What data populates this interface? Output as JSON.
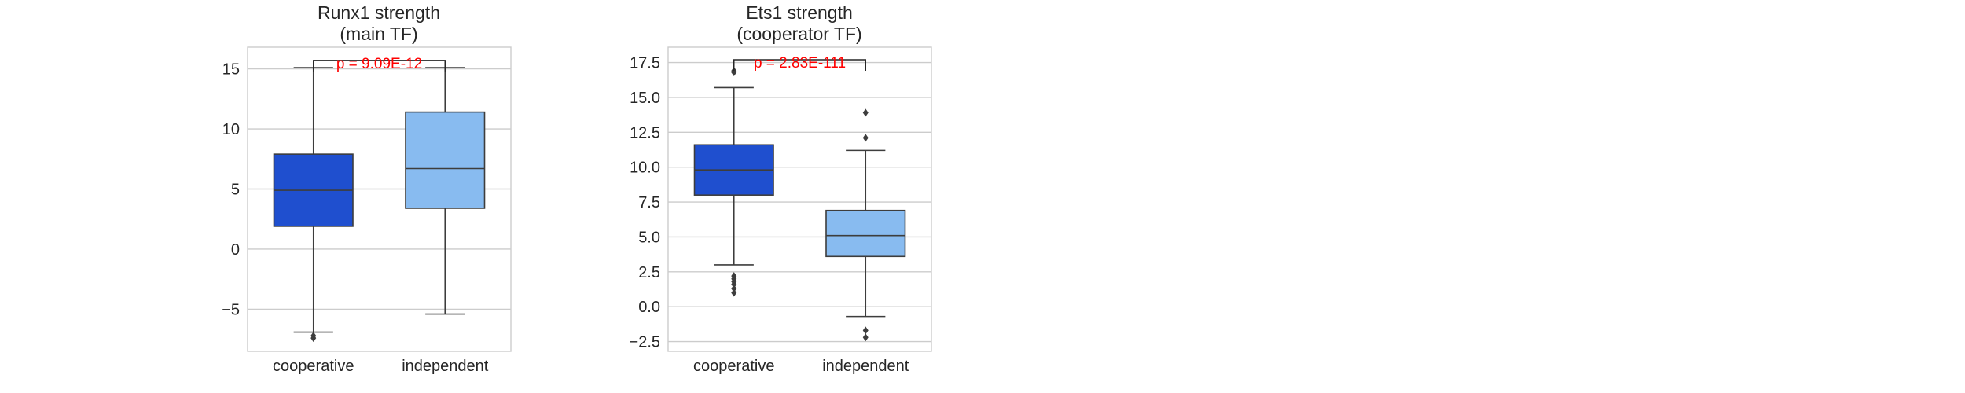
{
  "chart_data": [
    {
      "type": "box",
      "title_lines": [
        "Runx1 strength",
        "(main TF)"
      ],
      "xlabel": "",
      "ylabel": "",
      "ylim": [
        -8.5,
        16.8
      ],
      "yticks": [
        15,
        10,
        5,
        0,
        -5
      ],
      "ytick_labels": [
        "15",
        "10",
        "5",
        "0",
        "−5"
      ],
      "grid": true,
      "categories": [
        "cooperative",
        "independent"
      ],
      "boxes": [
        {
          "category": "cooperative",
          "color": "#1f4fcf",
          "whisker_low": -6.9,
          "q1": 1.9,
          "median": 4.9,
          "q3": 7.9,
          "whisker_high": 15.1,
          "fliers": [
            -7.2,
            -7.4
          ]
        },
        {
          "category": "independent",
          "color": "#88bbf0",
          "whisker_low": -5.4,
          "q1": 3.4,
          "median": 6.7,
          "q3": 11.4,
          "whisker_high": 15.1,
          "fliers": []
        }
      ],
      "annotation": {
        "text": "p = 9.09E-12",
        "color": "#ff0000",
        "bracket_y": 15.7
      }
    },
    {
      "type": "box",
      "title_lines": [
        "Ets1 strength",
        "(cooperator TF)"
      ],
      "xlabel": "",
      "ylabel": "",
      "ylim": [
        -3.2,
        18.6
      ],
      "yticks": [
        17.5,
        15.0,
        12.5,
        10.0,
        7.5,
        5.0,
        2.5,
        0.0,
        -2.5
      ],
      "ytick_labels": [
        "17.5",
        "15.0",
        "12.5",
        "10.0",
        "7.5",
        "5.0",
        "2.5",
        "0.0",
        "−2.5"
      ],
      "grid": true,
      "categories": [
        "cooperative",
        "independent"
      ],
      "boxes": [
        {
          "category": "cooperative",
          "color": "#1f4fcf",
          "whisker_low": 3.0,
          "q1": 8.0,
          "median": 9.8,
          "q3": 11.6,
          "whisker_high": 15.7,
          "fliers": [
            16.8,
            16.9,
            2.2,
            2.0,
            1.8,
            1.6,
            1.3,
            1.0
          ]
        },
        {
          "category": "independent",
          "color": "#88bbf0",
          "whisker_low": -0.7,
          "q1": 3.6,
          "median": 5.1,
          "q3": 6.9,
          "whisker_high": 11.2,
          "fliers": [
            13.9,
            12.1,
            -1.7,
            -2.2
          ]
        }
      ],
      "annotation": {
        "text": "p = 2.83E-111",
        "color": "#ff0000",
        "bracket_y": 17.7
      }
    }
  ]
}
